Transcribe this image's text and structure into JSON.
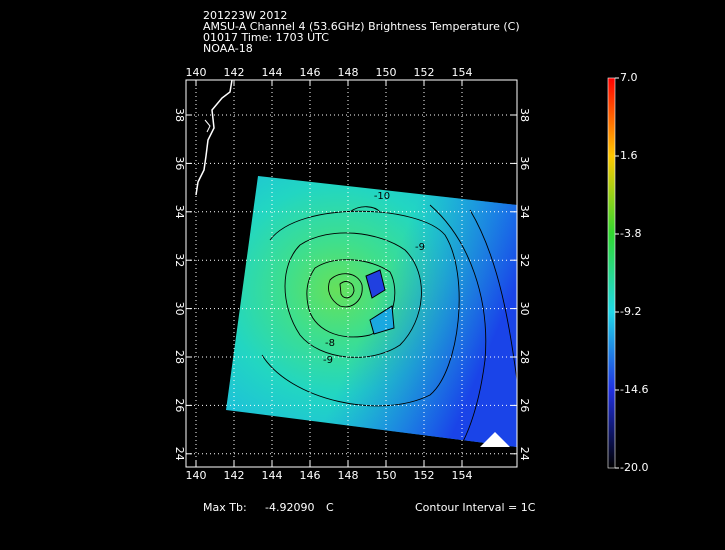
{
  "header": {
    "lines": [
      "201223W 2012",
      "AMSU-A Channel 4 (53.6GHz) Brightness Temperature (C)",
      "01017 Time: 1703 UTC",
      "NOAA-18"
    ]
  },
  "map": {
    "lon_labels": [
      "140",
      "142",
      "144",
      "146",
      "148",
      "150",
      "152",
      "154"
    ],
    "lat_labels": [
      "38",
      "36",
      "34",
      "32",
      "30",
      "28",
      "26",
      "24"
    ],
    "contour_labels": [
      "-10",
      "-9",
      "-9",
      "-8"
    ]
  },
  "colorbar": {
    "labels": [
      "7.0",
      "1.6",
      "-3.8",
      "-9.2",
      "-14.6",
      "-20.0"
    ]
  },
  "footer": {
    "max_label": "Max Tb:",
    "max_value": "-4.92090",
    "max_unit": "C",
    "contour_interval": "Contour Interval = 1C"
  }
}
